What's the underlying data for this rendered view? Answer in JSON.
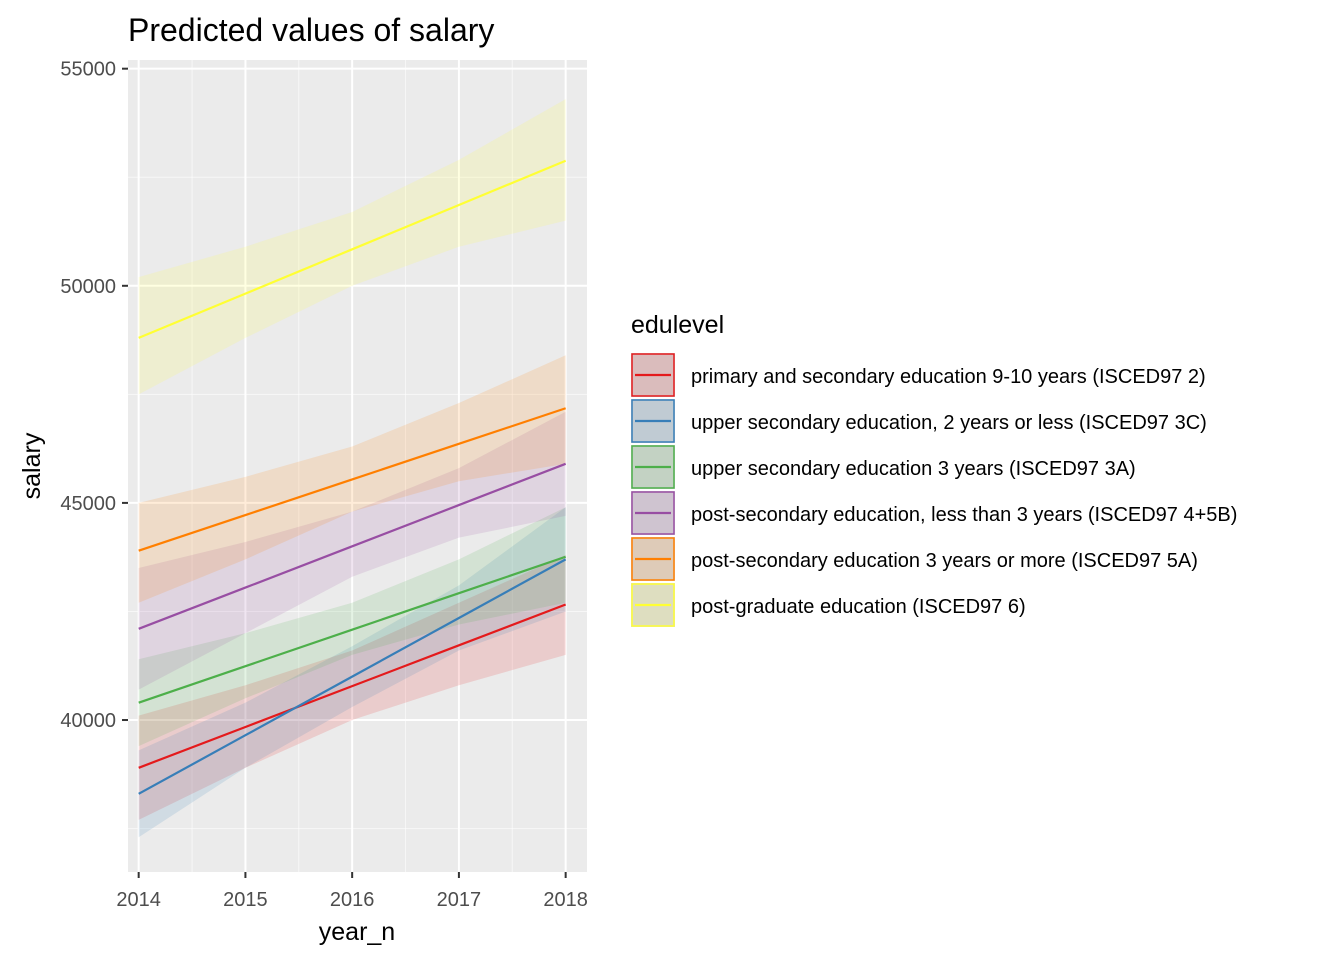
{
  "chart_data": {
    "type": "line",
    "title": "Predicted values of salary",
    "xlabel": "year_n",
    "ylabel": "salary",
    "x": [
      2014,
      2015,
      2016,
      2017,
      2018
    ],
    "x_ticks": [
      "2014",
      "2015",
      "2016",
      "2017",
      "2018"
    ],
    "y_ticks": [
      "40000",
      "45000",
      "50000",
      "55000"
    ],
    "xlim": [
      2013.9,
      2018.2
    ],
    "ylim": [
      36500,
      55200
    ],
    "grid": true,
    "legend_title": "edulevel",
    "legend_position": "right",
    "series": [
      {
        "name": "primary and secondary education 9-10 years (ISCED97 2)",
        "color": "#e41a1c",
        "values": [
          38900,
          39840,
          40780,
          41720,
          42660
        ],
        "lower": [
          37700,
          38900,
          40000,
          40800,
          41500
        ],
        "upper": [
          40100,
          40800,
          41600,
          42700,
          43800
        ]
      },
      {
        "name": "upper secondary education, 2 years or less (ISCED97 3C)",
        "color": "#377eb8",
        "values": [
          38300,
          39650,
          41000,
          42350,
          43700
        ],
        "lower": [
          37300,
          38900,
          40300,
          41600,
          42500
        ],
        "upper": [
          39300,
          40400,
          41700,
          43100,
          44900
        ]
      },
      {
        "name": "upper secondary education 3 years (ISCED97 3A)",
        "color": "#4daf4a",
        "values": [
          40400,
          41240,
          42080,
          42920,
          43760
        ],
        "lower": [
          39400,
          40500,
          41500,
          42200,
          42700
        ],
        "upper": [
          41400,
          42000,
          42700,
          43700,
          44900
        ]
      },
      {
        "name": "post-secondary education, less than 3 years (ISCED97 4+5B)",
        "color": "#984ea3",
        "values": [
          42100,
          43050,
          44000,
          44950,
          45900
        ],
        "lower": [
          40700,
          42000,
          43300,
          44200,
          44700
        ],
        "upper": [
          43500,
          44100,
          44800,
          45800,
          47100
        ]
      },
      {
        "name": "post-secondary education 3 years or more (ISCED97 5A)",
        "color": "#ff7f00",
        "values": [
          43900,
          44720,
          45540,
          46360,
          47180
        ],
        "lower": [
          42700,
          43700,
          44800,
          45500,
          45900
        ],
        "upper": [
          45000,
          45600,
          46300,
          47300,
          48400
        ]
      },
      {
        "name": "post-graduate education (ISCED97 6)",
        "color": "#ffff33",
        "values": [
          48800,
          49820,
          50840,
          51860,
          52880
        ],
        "lower": [
          47500,
          48800,
          50000,
          50900,
          51500
        ],
        "upper": [
          50200,
          50900,
          51700,
          52900,
          54300
        ]
      }
    ]
  },
  "colors": {
    "panel_background": "#ebebeb",
    "grid_major": "#ffffff",
    "tick_text": "#4d4d4d"
  }
}
